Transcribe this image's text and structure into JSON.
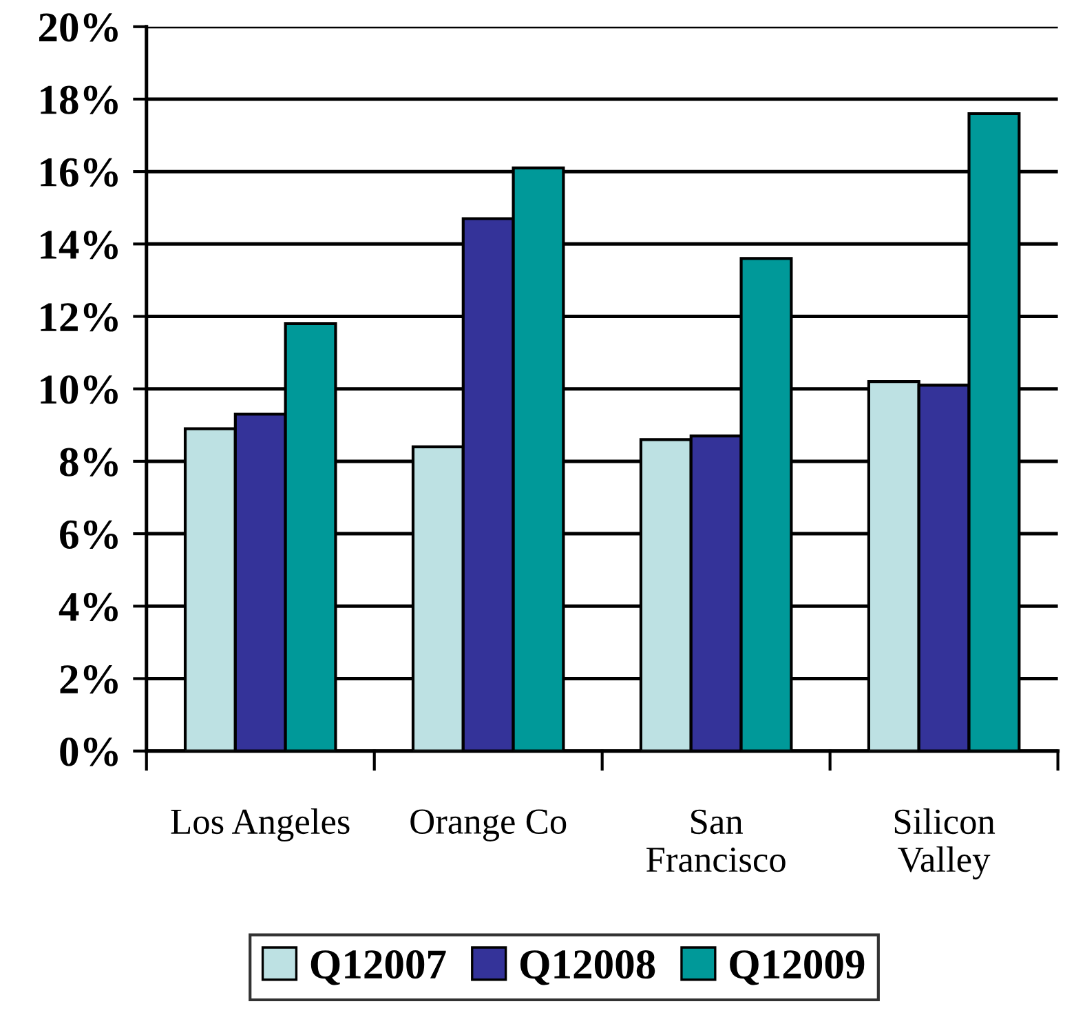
{
  "chart_data": {
    "type": "bar",
    "categories": [
      "Los Angeles",
      "Orange Co",
      "San\nFrancisco",
      "Silicon\nValley"
    ],
    "series": [
      {
        "name": "Q12007",
        "color": "#bde1e3",
        "values": [
          8.9,
          8.4,
          8.6,
          10.2
        ]
      },
      {
        "name": "Q12008",
        "color": "#343399",
        "values": [
          9.3,
          14.7,
          8.7,
          10.1
        ]
      },
      {
        "name": "Q12009",
        "color": "#009999",
        "values": [
          11.8,
          16.1,
          13.6,
          17.6
        ]
      }
    ],
    "ylim": [
      0,
      20
    ],
    "yticks": [
      {
        "value": 0,
        "label": "0%"
      },
      {
        "value": 2,
        "label": "2%"
      },
      {
        "value": 4,
        "label": "4%"
      },
      {
        "value": 6,
        "label": "6%"
      },
      {
        "value": 8,
        "label": "8%"
      },
      {
        "value": 10,
        "label": "10%"
      },
      {
        "value": 12,
        "label": "12%"
      },
      {
        "value": 14,
        "label": "14%"
      },
      {
        "value": 16,
        "label": "16%"
      },
      {
        "value": 18,
        "label": "18%"
      },
      {
        "value": 20,
        "label": "20%"
      }
    ],
    "grid": "y",
    "legend": "bottom"
  }
}
